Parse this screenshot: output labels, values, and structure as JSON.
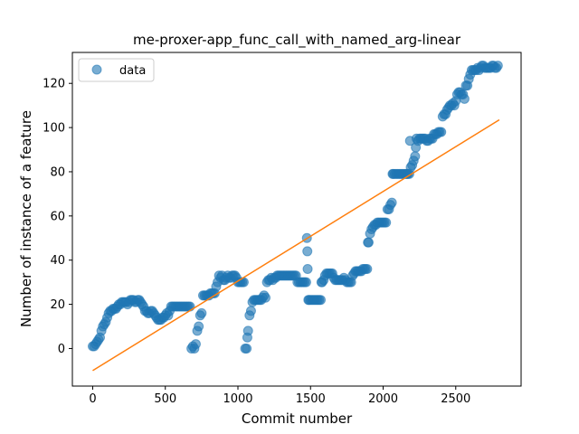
{
  "chart_data": {
    "type": "scatter",
    "title": "me-proxer-app_func_call_with_named_arg-linear",
    "xlabel": "Commit number",
    "ylabel": "Number of instance of a feature",
    "xlim": [
      -140,
      2950
    ],
    "ylim": [
      -17,
      134
    ],
    "xticks": [
      0,
      500,
      1000,
      1500,
      2000,
      2500
    ],
    "yticks": [
      0,
      20,
      40,
      60,
      80,
      100,
      120
    ],
    "legend": {
      "position": "top-left",
      "entries": [
        "data"
      ]
    },
    "grid": false,
    "colors": {
      "data": "#1f77b4",
      "fit": "#ff7f0e"
    },
    "series": [
      {
        "name": "data",
        "kind": "scatter",
        "points": [
          [
            0,
            1
          ],
          [
            10,
            1
          ],
          [
            20,
            2
          ],
          [
            30,
            3
          ],
          [
            40,
            4
          ],
          [
            50,
            5
          ],
          [
            60,
            8
          ],
          [
            70,
            10
          ],
          [
            80,
            11
          ],
          [
            90,
            12
          ],
          [
            100,
            14
          ],
          [
            110,
            16
          ],
          [
            120,
            17
          ],
          [
            130,
            17
          ],
          [
            140,
            18
          ],
          [
            150,
            18
          ],
          [
            160,
            18
          ],
          [
            170,
            19
          ],
          [
            180,
            20
          ],
          [
            190,
            20
          ],
          [
            200,
            21
          ],
          [
            210,
            21
          ],
          [
            220,
            21
          ],
          [
            230,
            21
          ],
          [
            240,
            20
          ],
          [
            250,
            21
          ],
          [
            260,
            22
          ],
          [
            270,
            22
          ],
          [
            280,
            22
          ],
          [
            290,
            21
          ],
          [
            300,
            21
          ],
          [
            310,
            22
          ],
          [
            320,
            22
          ],
          [
            330,
            21
          ],
          [
            340,
            20
          ],
          [
            350,
            19
          ],
          [
            360,
            17
          ],
          [
            370,
            17
          ],
          [
            380,
            16
          ],
          [
            390,
            16
          ],
          [
            400,
            17
          ],
          [
            410,
            17
          ],
          [
            420,
            16
          ],
          [
            430,
            15
          ],
          [
            440,
            14
          ],
          [
            450,
            13
          ],
          [
            460,
            13
          ],
          [
            470,
            13
          ],
          [
            480,
            14
          ],
          [
            490,
            14
          ],
          [
            500,
            15
          ],
          [
            510,
            16
          ],
          [
            520,
            15
          ],
          [
            530,
            17
          ],
          [
            540,
            19
          ],
          [
            550,
            19
          ],
          [
            560,
            19
          ],
          [
            570,
            19
          ],
          [
            580,
            19
          ],
          [
            590,
            19
          ],
          [
            600,
            19
          ],
          [
            610,
            19
          ],
          [
            620,
            19
          ],
          [
            630,
            19
          ],
          [
            640,
            19
          ],
          [
            650,
            19
          ],
          [
            660,
            19
          ],
          [
            670,
            19
          ],
          [
            680,
            0
          ],
          [
            690,
            1
          ],
          [
            700,
            0
          ],
          [
            710,
            2
          ],
          [
            720,
            8
          ],
          [
            730,
            10
          ],
          [
            740,
            15
          ],
          [
            750,
            16
          ],
          [
            760,
            24
          ],
          [
            770,
            24
          ],
          [
            780,
            24
          ],
          [
            790,
            24
          ],
          [
            800,
            24
          ],
          [
            810,
            25
          ],
          [
            820,
            25
          ],
          [
            830,
            25
          ],
          [
            840,
            25
          ],
          [
            850,
            28
          ],
          [
            860,
            30
          ],
          [
            870,
            33
          ],
          [
            880,
            32
          ],
          [
            890,
            33
          ],
          [
            900,
            31
          ],
          [
            910,
            31
          ],
          [
            920,
            32
          ],
          [
            930,
            33
          ],
          [
            940,
            32
          ],
          [
            950,
            32
          ],
          [
            960,
            33
          ],
          [
            970,
            33
          ],
          [
            980,
            33
          ],
          [
            990,
            32
          ],
          [
            1000,
            30
          ],
          [
            1010,
            30
          ],
          [
            1020,
            30
          ],
          [
            1030,
            30
          ],
          [
            1040,
            30
          ],
          [
            1050,
            0
          ],
          [
            1060,
            0
          ],
          [
            1065,
            5
          ],
          [
            1070,
            8
          ],
          [
            1080,
            15
          ],
          [
            1090,
            17
          ],
          [
            1100,
            21
          ],
          [
            1110,
            22
          ],
          [
            1120,
            22
          ],
          [
            1130,
            22
          ],
          [
            1140,
            22
          ],
          [
            1150,
            22
          ],
          [
            1160,
            22
          ],
          [
            1170,
            23
          ],
          [
            1180,
            24
          ],
          [
            1190,
            23
          ],
          [
            1200,
            30
          ],
          [
            1210,
            31
          ],
          [
            1220,
            31
          ],
          [
            1230,
            32
          ],
          [
            1240,
            31
          ],
          [
            1250,
            32
          ],
          [
            1260,
            32
          ],
          [
            1270,
            33
          ],
          [
            1280,
            33
          ],
          [
            1290,
            33
          ],
          [
            1300,
            33
          ],
          [
            1310,
            33
          ],
          [
            1320,
            33
          ],
          [
            1330,
            33
          ],
          [
            1340,
            33
          ],
          [
            1350,
            33
          ],
          [
            1360,
            33
          ],
          [
            1370,
            33
          ],
          [
            1380,
            33
          ],
          [
            1390,
            33
          ],
          [
            1400,
            33
          ],
          [
            1410,
            30
          ],
          [
            1420,
            30
          ],
          [
            1430,
            30
          ],
          [
            1440,
            30
          ],
          [
            1450,
            30
          ],
          [
            1460,
            30
          ],
          [
            1470,
            30
          ],
          [
            1475,
            50
          ],
          [
            1478,
            44
          ],
          [
            1480,
            36
          ],
          [
            1485,
            22
          ],
          [
            1490,
            22
          ],
          [
            1500,
            22
          ],
          [
            1510,
            22
          ],
          [
            1520,
            22
          ],
          [
            1530,
            22
          ],
          [
            1540,
            22
          ],
          [
            1550,
            22
          ],
          [
            1560,
            22
          ],
          [
            1570,
            22
          ],
          [
            1575,
            30
          ],
          [
            1580,
            30
          ],
          [
            1590,
            31
          ],
          [
            1600,
            33
          ],
          [
            1610,
            34
          ],
          [
            1620,
            34
          ],
          [
            1630,
            34
          ],
          [
            1640,
            34
          ],
          [
            1650,
            34
          ],
          [
            1660,
            32
          ],
          [
            1670,
            31
          ],
          [
            1680,
            31
          ],
          [
            1690,
            31
          ],
          [
            1700,
            31
          ],
          [
            1710,
            31
          ],
          [
            1720,
            31
          ],
          [
            1730,
            32
          ],
          [
            1740,
            31
          ],
          [
            1750,
            30
          ],
          [
            1760,
            30
          ],
          [
            1770,
            30
          ],
          [
            1780,
            30
          ],
          [
            1790,
            33
          ],
          [
            1800,
            34
          ],
          [
            1810,
            35
          ],
          [
            1820,
            35
          ],
          [
            1830,
            35
          ],
          [
            1840,
            35
          ],
          [
            1850,
            35
          ],
          [
            1860,
            36
          ],
          [
            1870,
            36
          ],
          [
            1880,
            36
          ],
          [
            1890,
            36
          ],
          [
            1895,
            48
          ],
          [
            1900,
            48
          ],
          [
            1910,
            52
          ],
          [
            1920,
            54
          ],
          [
            1930,
            55
          ],
          [
            1940,
            56
          ],
          [
            1950,
            56
          ],
          [
            1960,
            57
          ],
          [
            1970,
            57
          ],
          [
            1980,
            57
          ],
          [
            1990,
            57
          ],
          [
            2000,
            57
          ],
          [
            2010,
            57
          ],
          [
            2020,
            57
          ],
          [
            2030,
            63
          ],
          [
            2040,
            63
          ],
          [
            2050,
            65
          ],
          [
            2060,
            66
          ],
          [
            2065,
            79
          ],
          [
            2070,
            79
          ],
          [
            2080,
            79
          ],
          [
            2090,
            79
          ],
          [
            2100,
            79
          ],
          [
            2110,
            79
          ],
          [
            2120,
            79
          ],
          [
            2130,
            79
          ],
          [
            2140,
            79
          ],
          [
            2150,
            79
          ],
          [
            2160,
            79
          ],
          [
            2165,
            79
          ],
          [
            2170,
            79
          ],
          [
            2180,
            79
          ],
          [
            2185,
            94
          ],
          [
            2190,
            82
          ],
          [
            2200,
            83
          ],
          [
            2210,
            85
          ],
          [
            2220,
            87
          ],
          [
            2225,
            91
          ],
          [
            2230,
            95
          ],
          [
            2240,
            94
          ],
          [
            2250,
            95
          ],
          [
            2260,
            95
          ],
          [
            2270,
            95
          ],
          [
            2280,
            95
          ],
          [
            2290,
            95
          ],
          [
            2300,
            94
          ],
          [
            2310,
            94
          ],
          [
            2320,
            95
          ],
          [
            2330,
            95
          ],
          [
            2340,
            95
          ],
          [
            2350,
            97
          ],
          [
            2360,
            97
          ],
          [
            2370,
            97
          ],
          [
            2380,
            98
          ],
          [
            2390,
            98
          ],
          [
            2400,
            98
          ],
          [
            2410,
            105
          ],
          [
            2420,
            106
          ],
          [
            2430,
            106
          ],
          [
            2440,
            108
          ],
          [
            2450,
            109
          ],
          [
            2460,
            110
          ],
          [
            2470,
            110
          ],
          [
            2480,
            111
          ],
          [
            2490,
            110
          ],
          [
            2500,
            112
          ],
          [
            2510,
            115
          ],
          [
            2520,
            116
          ],
          [
            2530,
            116
          ],
          [
            2540,
            115
          ],
          [
            2550,
            115
          ],
          [
            2560,
            113
          ],
          [
            2570,
            119
          ],
          [
            2580,
            119
          ],
          [
            2590,
            122
          ],
          [
            2600,
            124
          ],
          [
            2610,
            126
          ],
          [
            2620,
            126
          ],
          [
            2630,
            126
          ],
          [
            2640,
            126
          ],
          [
            2650,
            127
          ],
          [
            2660,
            126
          ],
          [
            2670,
            127
          ],
          [
            2680,
            128
          ],
          [
            2690,
            128
          ],
          [
            2700,
            127
          ],
          [
            2710,
            127
          ],
          [
            2720,
            127
          ],
          [
            2730,
            127
          ],
          [
            2740,
            127
          ],
          [
            2750,
            128
          ],
          [
            2760,
            128
          ],
          [
            2770,
            127
          ],
          [
            2780,
            127
          ],
          [
            2790,
            128
          ]
        ]
      },
      {
        "name": "",
        "kind": "line",
        "points": [
          [
            0,
            -10
          ],
          [
            2800,
            103.5
          ]
        ]
      }
    ]
  }
}
